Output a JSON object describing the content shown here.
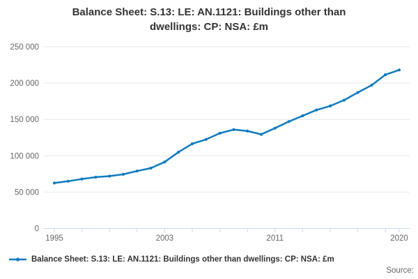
{
  "title": {
    "lines": [
      "Balance Sheet: S.13: LE: AN.1121: Buildings other than",
      "dwellings: CP: NSA: £m"
    ]
  },
  "legend": {
    "label": "Balance Sheet: S.13: LE: AN.1121: Buildings other than dwellings: CP: NSA: £m"
  },
  "footer": {
    "source_label": "Source:"
  },
  "colors": {
    "line": "#0f7bbd",
    "grid": "#e6e6e6",
    "axis": "#ccd6eb",
    "axis_label": "#666666",
    "text": "#333333"
  },
  "chart_data": {
    "type": "line",
    "title": "Balance Sheet: S.13: LE: AN.1121: Buildings other than dwellings: CP: NSA: £m",
    "xlabel": "",
    "ylabel": "",
    "x": [
      1995,
      1996,
      1997,
      1998,
      1999,
      2000,
      2001,
      2002,
      2003,
      2004,
      2005,
      2006,
      2007,
      2008,
      2009,
      2010,
      2011,
      2012,
      2013,
      2014,
      2015,
      2016,
      2017,
      2018,
      2019,
      2020
    ],
    "values": [
      62500,
      65000,
      68000,
      70500,
      72000,
      74500,
      79000,
      83000,
      91500,
      105000,
      116500,
      122500,
      131000,
      136000,
      134000,
      129500,
      138000,
      147000,
      155000,
      163000,
      168500,
      176500,
      187000,
      197000,
      211500,
      218000
    ],
    "ylim": [
      0,
      250000
    ],
    "yticks": [
      {
        "value": 0,
        "label": "0"
      },
      {
        "value": 50000,
        "label": "50 000"
      },
      {
        "value": 100000,
        "label": "100 000"
      },
      {
        "value": 150000,
        "label": "150 000"
      },
      {
        "value": 200000,
        "label": "200 000"
      },
      {
        "value": 250000,
        "label": "250 000"
      }
    ],
    "xticks": [
      1995,
      1997,
      1999,
      2001,
      2003,
      2005,
      2007,
      2009,
      2011,
      2013,
      2015,
      2017,
      2019,
      2020
    ],
    "xtick_labels": [
      {
        "value": 1995,
        "label": "1995"
      },
      {
        "value": 2003,
        "label": "2003"
      },
      {
        "value": 2011,
        "label": "2011"
      },
      {
        "value": 2020,
        "label": "2020"
      }
    ],
    "grid": true,
    "legend_position": "bottom-left",
    "marker": "circle"
  }
}
